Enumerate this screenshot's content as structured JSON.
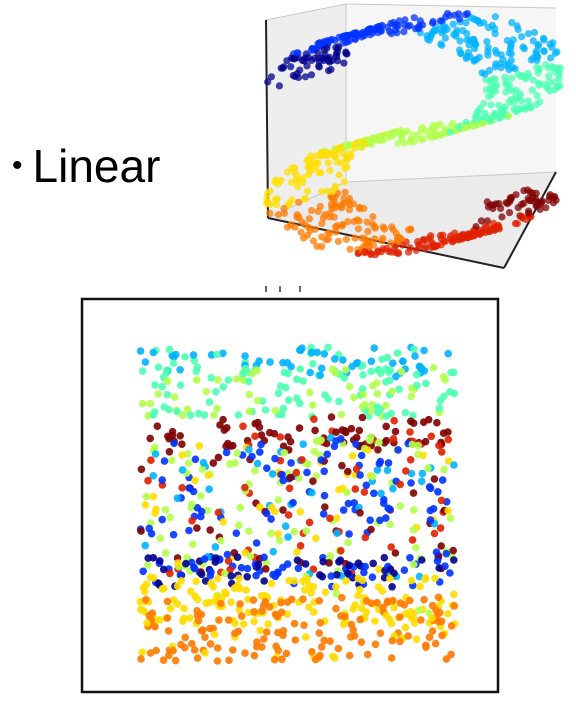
{
  "slide": {
    "bullet": "•",
    "label": "Linear"
  },
  "colors": {
    "colormap": [
      "#00008f",
      "#0033ff",
      "#00b3ff",
      "#4cffb3",
      "#b3ff4c",
      "#ffdd00",
      "#ff7a00",
      "#e02000",
      "#800000"
    ],
    "frame": "#000000",
    "pane": "#f2f2f2"
  },
  "figures": {
    "swiss_s_curve_3d": {
      "type": "3d-scatter",
      "manifold": "s-curve",
      "colormap": "jet"
    },
    "linear_embedding_2d": {
      "type": "2d-scatter",
      "method": "linear",
      "colormap": "jet"
    }
  }
}
